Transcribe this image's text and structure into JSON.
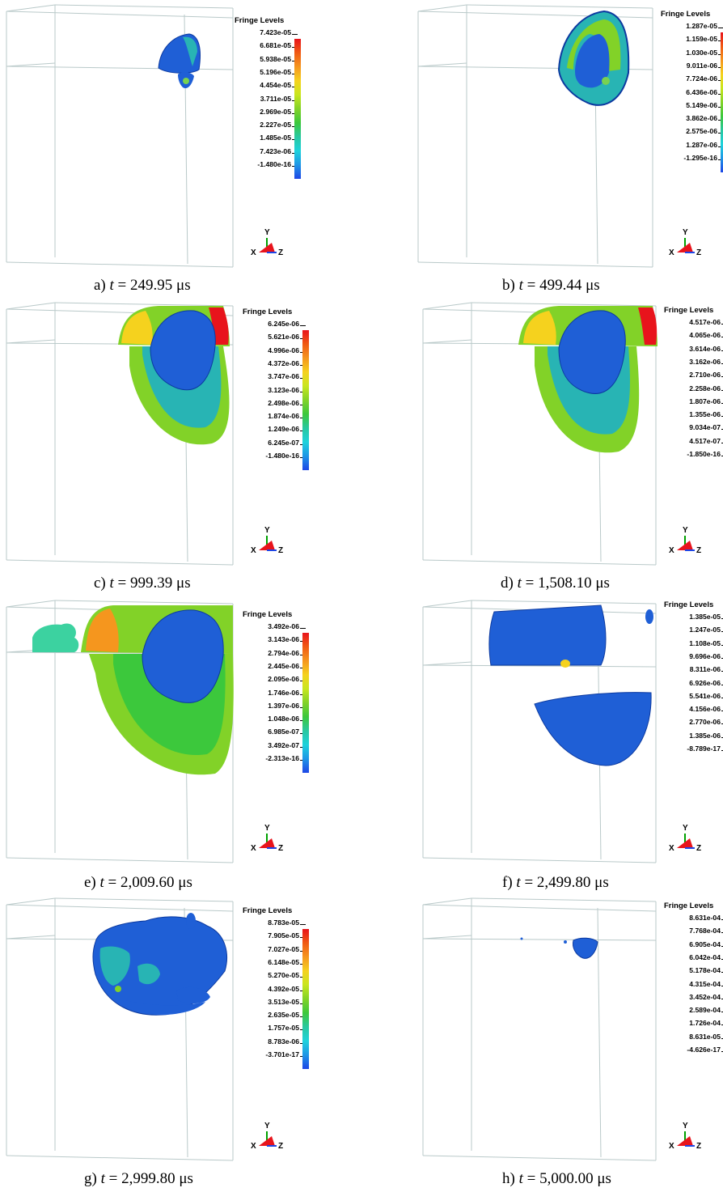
{
  "legend_title": "Fringe Levels",
  "axis_labels": {
    "y": "Y",
    "x": "X",
    "z": "Z"
  },
  "colorbar_colors": [
    "#e8141c",
    "#f05a14",
    "#f5961e",
    "#f5d21e",
    "#c8e61e",
    "#82d228",
    "#3cc83c",
    "#28c8a0",
    "#1ed2dc",
    "#1e96e6",
    "#1e46e6"
  ],
  "panels": [
    {
      "letter": "a)",
      "time_value": "249.95",
      "time_unit": "μs",
      "levels": [
        "7.423e-05",
        "6.681e-05",
        "5.938e-05",
        "5.196e-05",
        "4.454e-05",
        "3.711e-05",
        "2.969e-05",
        "2.227e-05",
        "1.485e-05",
        "7.423e-06",
        "-1.480e-16"
      ]
    },
    {
      "letter": "b)",
      "time_value": "499.44",
      "time_unit": "μs",
      "levels": [
        "1.287e-05",
        "1.159e-05",
        "1.030e-05",
        "9.011e-06",
        "7.724e-06",
        "6.436e-06",
        "5.149e-06",
        "3.862e-06",
        "2.575e-06",
        "1.287e-06",
        "-1.295e-16"
      ]
    },
    {
      "letter": "c)",
      "time_value": "999.39",
      "time_unit": "μs",
      "levels": [
        "6.245e-06",
        "5.621e-06",
        "4.996e-06",
        "4.372e-06",
        "3.747e-06",
        "3.123e-06",
        "2.498e-06",
        "1.874e-06",
        "1.249e-06",
        "6.245e-07",
        "-1.480e-16"
      ]
    },
    {
      "letter": "d)",
      "time_value": "1,508.10",
      "time_unit": "μs",
      "levels": [
        "4.517e-06",
        "4.065e-06",
        "3.614e-06",
        "3.162e-06",
        "2.710e-06",
        "2.258e-06",
        "1.807e-06",
        "1.355e-06",
        "9.034e-07",
        "4.517e-07",
        "-1.850e-16"
      ]
    },
    {
      "letter": "e)",
      "time_value": "2,009.60",
      "time_unit": "μs",
      "levels": [
        "3.492e-06",
        "3.143e-06",
        "2.794e-06",
        "2.445e-06",
        "2.095e-06",
        "1.746e-06",
        "1.397e-06",
        "1.048e-06",
        "6.985e-07",
        "3.492e-07",
        "-2.313e-16"
      ]
    },
    {
      "letter": "f)",
      "time_value": "2,499.80",
      "time_unit": "μs",
      "levels": [
        "1.385e-05",
        "1.247e-05",
        "1.108e-05",
        "9.696e-06",
        "8.311e-06",
        "6.926e-06",
        "5.541e-06",
        "4.156e-06",
        "2.770e-06",
        "1.385e-06",
        "-8.789e-17"
      ]
    },
    {
      "letter": "g)",
      "time_value": "2,999.80",
      "time_unit": "μs",
      "levels": [
        "8.783e-05",
        "7.905e-05",
        "7.027e-05",
        "6.148e-05",
        "5.270e-05",
        "4.392e-05",
        "3.513e-05",
        "2.635e-05",
        "1.757e-05",
        "8.783e-06",
        "-3.701e-17"
      ]
    },
    {
      "letter": "h)",
      "time_value": "5,000.00",
      "time_unit": "μs",
      "levels": [
        "8.631e-04",
        "7.768e-04",
        "6.905e-04",
        "6.042e-04",
        "5.178e-04",
        "4.315e-04",
        "3.452e-04",
        "2.589e-04",
        "1.726e-04",
        "8.631e-05",
        "-4.626e-17"
      ]
    }
  ]
}
